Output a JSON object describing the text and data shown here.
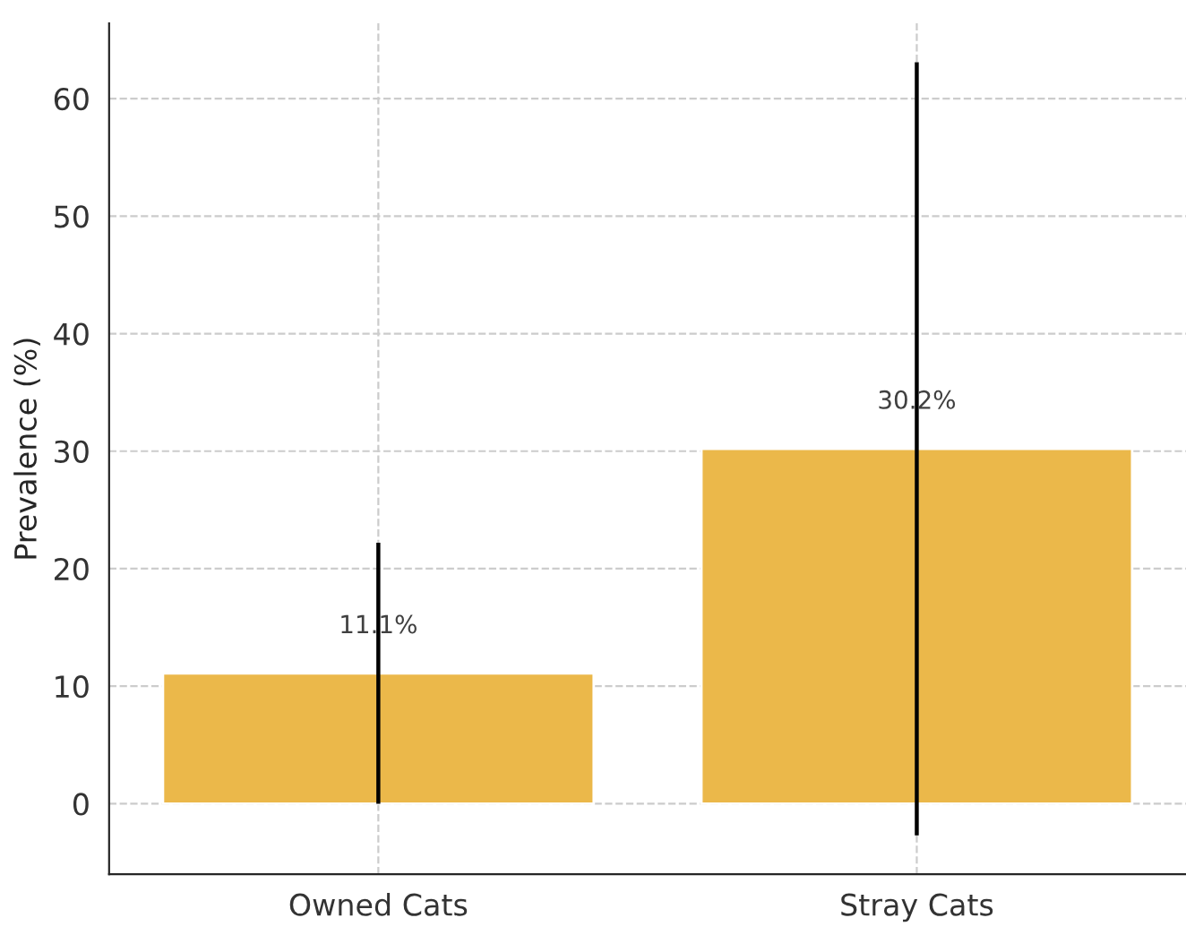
{
  "chart_data": {
    "type": "bar",
    "ylabel": "Prevalence (%)",
    "categories": [
      "Owned Cats",
      "Stray Cats"
    ],
    "values": [
      11.1,
      30.2
    ],
    "errors": [
      11.1,
      32.9
    ],
    "value_labels": [
      "11.1%",
      "30.2%"
    ],
    "color": "#ebb84a",
    "ylim": [
      -6,
      66.4
    ],
    "yticks": [
      0,
      10,
      20,
      30,
      40,
      50,
      60
    ],
    "grid": true
  }
}
